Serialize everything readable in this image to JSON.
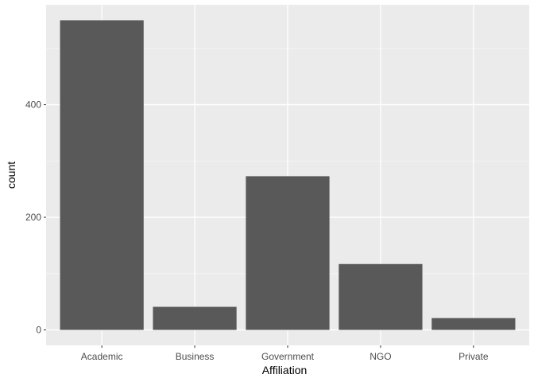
{
  "chart_data": {
    "type": "bar",
    "categories": [
      "Academic",
      "Business",
      "Government",
      "NGO",
      "Private"
    ],
    "values": [
      550,
      41,
      273,
      117,
      21
    ],
    "xlabel": "Affiliation",
    "ylabel": "count",
    "ylim": [
      -27.5,
      577.5
    ],
    "yticks": [
      0,
      200,
      400
    ],
    "grid": true,
    "colors": {
      "bar": "#595959",
      "panel": "#ebebeb",
      "grid_major": "#ffffff",
      "grid_minor": "#f5f5f5",
      "tick": "#333333"
    }
  }
}
